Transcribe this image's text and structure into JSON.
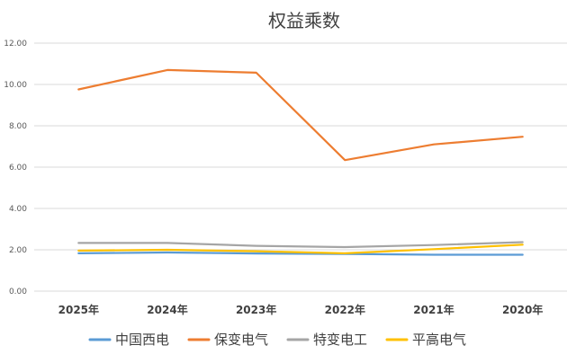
{
  "chart_data": {
    "type": "line",
    "title": "权益乘数",
    "categories": [
      "2025年",
      "2024年",
      "2023年",
      "2022年",
      "2021年",
      "2020年"
    ],
    "ylim": [
      0,
      12
    ],
    "yticks": [
      "0.00",
      "2.00",
      "4.00",
      "6.00",
      "8.00",
      "10.00",
      "12.00"
    ],
    "grid": true,
    "legend_position": "bottom",
    "series": [
      {
        "name": "中国西电",
        "color": "#5b9bd5",
        "values": [
          1.83,
          1.87,
          1.82,
          1.8,
          1.76,
          1.76
        ]
      },
      {
        "name": "保变电气",
        "color": "#ed7d31",
        "values": [
          9.76,
          10.7,
          10.57,
          6.34,
          7.1,
          7.47
        ]
      },
      {
        "name": "特变电工",
        "color": "#a5a5a5",
        "values": [
          2.33,
          2.33,
          2.19,
          2.13,
          2.23,
          2.37
        ]
      },
      {
        "name": "平高电气",
        "color": "#ffc000",
        "values": [
          1.96,
          2.0,
          1.93,
          1.83,
          2.03,
          2.25
        ]
      }
    ]
  }
}
